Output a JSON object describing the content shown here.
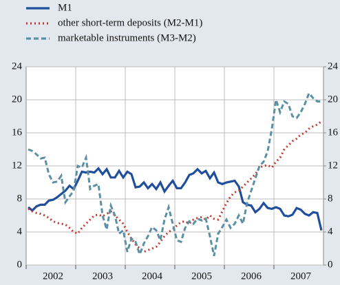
{
  "chart_data": {
    "type": "line",
    "categories": [
      null,
      null,
      null,
      null,
      null,
      null,
      "2002",
      null,
      null,
      null,
      null,
      null,
      null,
      null,
      null,
      null,
      null,
      null,
      "2003",
      null,
      null,
      null,
      null,
      null,
      null,
      null,
      null,
      null,
      null,
      null,
      "2004",
      null,
      null,
      null,
      null,
      null,
      null,
      null,
      null,
      null,
      null,
      null,
      "2005",
      null,
      null,
      null,
      null,
      null,
      null,
      null,
      null,
      null,
      null,
      null,
      "2006",
      null,
      null,
      null,
      null,
      null,
      null,
      null,
      null,
      null,
      null,
      null,
      "2007",
      null,
      null,
      null,
      null,
      null
    ],
    "series": [
      {
        "name": "M1",
        "color": "#1f4e9c",
        "style": "solid",
        "values": [
          7.0,
          6.6,
          7.1,
          7.3,
          7.3,
          7.8,
          7.9,
          8.2,
          8.6,
          9.0,
          9.6,
          9.2,
          10.2,
          11.3,
          11.2,
          11.3,
          11.2,
          11.7,
          11.0,
          11.6,
          10.6,
          10.6,
          11.4,
          10.6,
          11.3,
          11.0,
          9.4,
          9.5,
          10.0,
          9.3,
          9.8,
          9.2,
          10.0,
          8.9,
          9.6,
          10.2,
          9.3,
          9.3,
          10.0,
          10.9,
          11.1,
          11.6,
          11.1,
          11.4,
          10.5,
          11.2,
          10.0,
          9.8,
          10.0,
          10.1,
          10.2,
          9.5,
          7.6,
          7.3,
          7.2,
          6.4,
          6.8,
          7.5,
          6.9,
          6.8,
          7.0,
          6.8,
          6.0,
          5.9,
          6.1,
          6.9,
          6.7,
          6.2,
          6.0,
          6.4,
          6.3,
          4.2
        ]
      },
      {
        "name": "other short-term deposits (M2-M1)",
        "color": "#c0392b",
        "style": "dotted",
        "values": [
          6.8,
          6.5,
          6.3,
          6.2,
          6.0,
          5.7,
          5.3,
          5.1,
          5.0,
          4.9,
          4.5,
          4.0,
          3.8,
          4.5,
          5.0,
          5.5,
          6.0,
          6.1,
          5.9,
          6.2,
          6.5,
          6.0,
          5.5,
          5.0,
          4.0,
          3.2,
          2.5,
          2.0,
          1.6,
          1.8,
          2.0,
          2.2,
          2.8,
          3.5,
          4.0,
          4.3,
          4.8,
          5.2,
          5.3,
          5.0,
          5.5,
          5.7,
          5.8,
          5.5,
          6.0,
          5.6,
          5.5,
          6.5,
          7.5,
          8.3,
          8.8,
          9.0,
          9.5,
          10.0,
          10.5,
          11.0,
          11.8,
          12.0,
          12.1,
          11.8,
          12.5,
          13.0,
          14.0,
          14.5,
          15.0,
          15.3,
          15.8,
          16.0,
          16.5,
          16.8,
          17.0,
          17.4
        ]
      },
      {
        "name": "marketable instruments (M3-M2)",
        "color": "#5b8fa3",
        "style": "dashed",
        "values": [
          14.0,
          13.8,
          13.4,
          12.9,
          13.0,
          11.0,
          10.0,
          10.1,
          10.8,
          7.6,
          8.3,
          9.0,
          12.0,
          11.8,
          13.0,
          9.2,
          9.6,
          9.8,
          6.0,
          4.3,
          7.2,
          6.0,
          3.8,
          4.2,
          1.6,
          3.2,
          2.8,
          1.3,
          2.6,
          3.5,
          4.6,
          4.2,
          3.0,
          5.5,
          7.0,
          5.0,
          3.0,
          2.8,
          4.5,
          5.3,
          5.0,
          5.6,
          5.4,
          5.6,
          3.5,
          1.1,
          3.8,
          4.6,
          5.5,
          4.5,
          5.0,
          6.0,
          5.0,
          7.5,
          9.0,
          10.5,
          12.0,
          12.5,
          13.8,
          16.5,
          20.0,
          18.5,
          19.8,
          19.5,
          18.0,
          17.8,
          18.5,
          19.5,
          20.8,
          20.2,
          19.8,
          19.8
        ]
      }
    ],
    "ylim": [
      0,
      24
    ],
    "yticks": [
      0,
      4,
      8,
      12,
      16,
      20,
      24
    ],
    "y2lim": [
      0,
      24
    ],
    "y2ticks": [
      0,
      4,
      8,
      12,
      16,
      20,
      24
    ],
    "grid": true,
    "legend": "top-left"
  }
}
